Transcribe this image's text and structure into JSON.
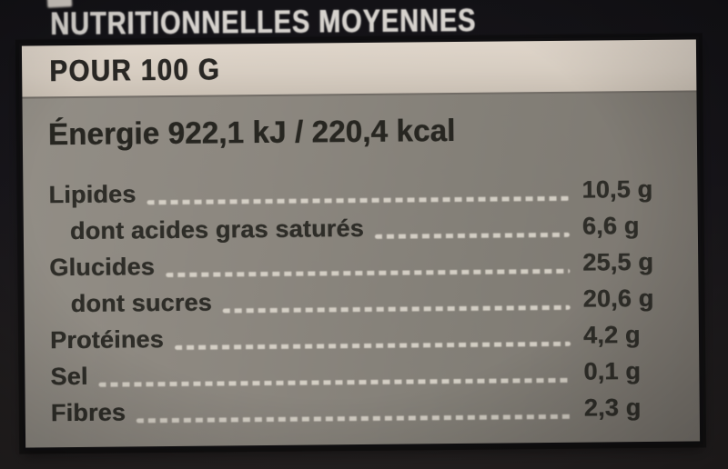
{
  "label": {
    "header_title": "NUTRITIONNELLES MOYENNES",
    "serving_header": "POUR 100 G",
    "energy_line": "Énergie 922,1 kJ / 220,4 kcal",
    "rows": [
      {
        "name": "Lipides",
        "value": "10,5 g",
        "indent": false
      },
      {
        "name": "dont acides gras saturés",
        "value": "6,6 g",
        "indent": true
      },
      {
        "name": "Glucides",
        "value": "25,5 g",
        "indent": false
      },
      {
        "name": "dont sucres",
        "value": "20,6 g",
        "indent": true
      },
      {
        "name": "Protéines",
        "value": "4,2 g",
        "indent": false
      },
      {
        "name": "Sel",
        "value": "0,1 g",
        "indent": false
      },
      {
        "name": "Fibres",
        "value": "2,3 g",
        "indent": false
      }
    ]
  },
  "colors": {
    "background_dark": "#17151a",
    "serving_bar_bg": "#d9cfc3",
    "panel_bg": "#87837b",
    "text_dark": "#2b2a25",
    "title_text": "#d6d2cd",
    "leader_dots": "#e4ded4"
  }
}
